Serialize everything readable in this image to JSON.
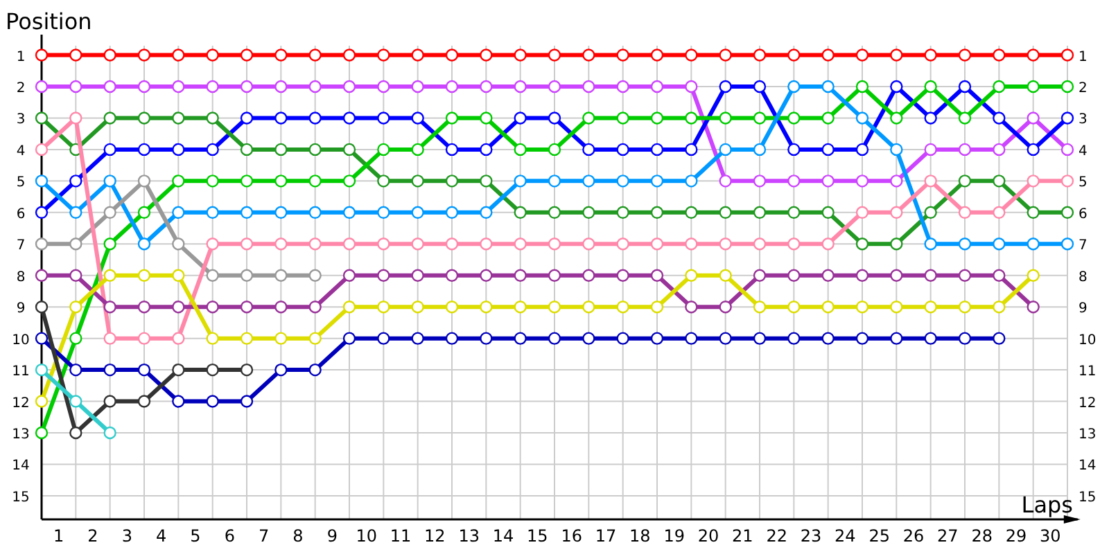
{
  "chart_data": {
    "type": "line",
    "xlabel": "Laps",
    "ylabel": "Position",
    "marker": "circle",
    "line_style": "solid",
    "grid": true,
    "x": [
      0,
      1,
      2,
      3,
      4,
      5,
      6,
      7,
      8,
      9,
      10,
      11,
      12,
      13,
      14,
      15,
      16,
      17,
      18,
      19,
      20,
      21,
      22,
      23,
      24,
      25,
      26,
      27,
      28,
      29,
      30
    ],
    "xlim": [
      0,
      30.3
    ],
    "xticks": [
      {
        "value": 0,
        "label": null
      },
      {
        "value": 1,
        "label": null
      },
      {
        "value": 2,
        "label": null
      },
      {
        "value": 3,
        "label": null
      },
      {
        "value": 4,
        "label": null
      },
      {
        "value": 5,
        "label": null
      },
      {
        "value": 6,
        "label": null
      },
      {
        "value": 7,
        "label": null
      },
      {
        "value": 8,
        "label": null
      },
      {
        "value": 9,
        "label": null
      },
      {
        "value": 10,
        "label": null
      },
      {
        "value": 11,
        "label": null
      },
      {
        "value": 12,
        "label": null
      },
      {
        "value": 13,
        "label": null
      },
      {
        "value": 14,
        "label": null
      },
      {
        "value": 15,
        "label": null
      },
      {
        "value": 16,
        "label": null
      },
      {
        "value": 17,
        "label": null
      },
      {
        "value": 18,
        "label": null
      },
      {
        "value": 19,
        "label": null
      },
      {
        "value": 20,
        "label": null
      },
      {
        "value": 21,
        "label": null
      },
      {
        "value": 22,
        "label": null
      },
      {
        "value": 23,
        "label": null
      },
      {
        "value": 24,
        "label": null
      },
      {
        "value": 25,
        "label": null
      },
      {
        "value": 26,
        "label": null
      },
      {
        "value": 27,
        "label": null
      },
      {
        "value": 28,
        "label": null
      },
      {
        "value": 29,
        "label": null
      },
      {
        "value": 30,
        "label": null
      },
      {
        "value": 0.5,
        "label": "1"
      },
      {
        "value": 1.5,
        "label": "2"
      },
      {
        "value": 2.5,
        "label": "3"
      },
      {
        "value": 3.5,
        "label": "4"
      },
      {
        "value": 4.5,
        "label": "5"
      },
      {
        "value": 5.5,
        "label": "6"
      },
      {
        "value": 6.5,
        "label": "7"
      },
      {
        "value": 7.5,
        "label": "8"
      },
      {
        "value": 8.5,
        "label": "9"
      },
      {
        "value": 9.5,
        "label": "10"
      },
      {
        "value": 10.5,
        "label": "11"
      },
      {
        "value": 11.5,
        "label": "12"
      },
      {
        "value": 12.5,
        "label": "13"
      },
      {
        "value": 13.5,
        "label": "14"
      },
      {
        "value": 14.5,
        "label": "15"
      },
      {
        "value": 15.5,
        "label": "16"
      },
      {
        "value": 16.5,
        "label": "17"
      },
      {
        "value": 17.5,
        "label": "18"
      },
      {
        "value": 18.5,
        "label": "19"
      },
      {
        "value": 19.5,
        "label": "20"
      },
      {
        "value": 20.5,
        "label": "21"
      },
      {
        "value": 21.5,
        "label": "22"
      },
      {
        "value": 22.5,
        "label": "23"
      },
      {
        "value": 23.5,
        "label": "24"
      },
      {
        "value": 24.5,
        "label": "25"
      },
      {
        "value": 25.5,
        "label": "26"
      },
      {
        "value": 26.5,
        "label": "27"
      },
      {
        "value": 27.5,
        "label": "28"
      },
      {
        "value": 28.5,
        "label": "29"
      },
      {
        "value": 29.5,
        "label": "30"
      }
    ],
    "ylim": [
      15.75,
      0.35
    ],
    "yticks": [
      1,
      2,
      3,
      4,
      5,
      6,
      7,
      8,
      9,
      10,
      11,
      12,
      13,
      14,
      15
    ],
    "y2lim": [
      15.75,
      0.35
    ],
    "y2ticks": [
      1,
      2,
      3,
      4,
      5,
      6,
      7,
      8,
      9,
      10,
      11,
      12,
      13,
      14,
      15
    ],
    "series": [
      {
        "color": "#ff0000",
        "values": [
          1,
          1,
          1,
          1,
          1,
          1,
          1,
          1,
          1,
          1,
          1,
          1,
          1,
          1,
          1,
          1,
          1,
          1,
          1,
          1,
          1,
          1,
          1,
          1,
          1,
          1,
          1,
          1,
          1,
          1,
          1
        ]
      },
      {
        "color": "#cc44ff",
        "values": [
          2,
          2,
          2,
          2,
          2,
          2,
          2,
          2,
          2,
          2,
          2,
          2,
          2,
          2,
          2,
          2,
          2,
          2,
          2,
          2,
          5,
          5,
          5,
          5,
          5,
          5,
          4,
          4,
          4,
          3,
          4
        ]
      },
      {
        "color": "#0000ff",
        "values": [
          6,
          5,
          4,
          4,
          4,
          4,
          3,
          3,
          3,
          3,
          3,
          3,
          4,
          4,
          3,
          3,
          4,
          4,
          4,
          4,
          2,
          2,
          4,
          4,
          4,
          2,
          3,
          2,
          3,
          4,
          3
        ]
      },
      {
        "color": "#229922",
        "values": [
          3,
          4,
          3,
          3,
          3,
          3,
          4,
          4,
          4,
          4,
          5,
          5,
          5,
          5,
          6,
          6,
          6,
          6,
          6,
          6,
          6,
          6,
          6,
          6,
          7,
          7,
          6,
          5,
          5,
          6,
          6
        ]
      },
      {
        "color": "#00cc00",
        "values": [
          13,
          10,
          7,
          6,
          5,
          5,
          5,
          5,
          5,
          5,
          4,
          4,
          3,
          3,
          4,
          4,
          3,
          3,
          3,
          3,
          3,
          3,
          3,
          3,
          2,
          3,
          2,
          3,
          2,
          2,
          2
        ]
      },
      {
        "color": "#0099ff",
        "values": [
          5,
          6,
          5,
          7,
          6,
          6,
          6,
          6,
          6,
          6,
          6,
          6,
          6,
          6,
          5,
          5,
          5,
          5,
          5,
          5,
          4,
          4,
          2,
          2,
          3,
          4,
          7,
          7,
          7,
          7,
          7
        ]
      },
      {
        "color": "#999999",
        "values": [
          7,
          7,
          6,
          5,
          7,
          8,
          8,
          8,
          8,
          null,
          null,
          null,
          null,
          null,
          null,
          null,
          null,
          null,
          null,
          null,
          null,
          null,
          null,
          null,
          null,
          null,
          null,
          null,
          null,
          null,
          null
        ]
      },
      {
        "color": "#ff88aa",
        "values": [
          4,
          3,
          10,
          10,
          10,
          7,
          7,
          7,
          7,
          7,
          7,
          7,
          7,
          7,
          7,
          7,
          7,
          7,
          7,
          7,
          7,
          7,
          7,
          7,
          6,
          6,
          5,
          6,
          6,
          5,
          5
        ]
      },
      {
        "color": "#993399",
        "values": [
          8,
          8,
          9,
          9,
          9,
          9,
          9,
          9,
          9,
          8,
          8,
          8,
          8,
          8,
          8,
          8,
          8,
          8,
          8,
          9,
          9,
          8,
          8,
          8,
          8,
          8,
          8,
          8,
          8,
          9,
          null
        ]
      },
      {
        "color": "#dddd00",
        "values": [
          12,
          9,
          8,
          8,
          8,
          10,
          10,
          10,
          10,
          9,
          9,
          9,
          9,
          9,
          9,
          9,
          9,
          9,
          9,
          8,
          8,
          9,
          9,
          9,
          9,
          9,
          9,
          9,
          9,
          8,
          null
        ]
      },
      {
        "color": "#0000bb",
        "values": [
          10,
          11,
          11,
          11,
          12,
          12,
          12,
          11,
          11,
          10,
          10,
          10,
          10,
          10,
          10,
          10,
          10,
          10,
          10,
          10,
          10,
          10,
          10,
          10,
          10,
          10,
          10,
          10,
          10,
          null,
          null
        ]
      },
      {
        "color": "#333333",
        "values": [
          9,
          13,
          12,
          12,
          11,
          11,
          11,
          null,
          null,
          null,
          null,
          null,
          null,
          null,
          null,
          null,
          null,
          null,
          null,
          null,
          null,
          null,
          null,
          null,
          null,
          null,
          null,
          null,
          null,
          null,
          null
        ]
      },
      {
        "color": "#33cccc",
        "values": [
          11,
          12,
          13,
          null,
          null,
          null,
          null,
          null,
          null,
          null,
          null,
          null,
          null,
          null,
          null,
          null,
          null,
          null,
          null,
          null,
          null,
          null,
          null,
          null,
          null,
          null,
          null,
          null,
          null,
          null,
          null
        ]
      }
    ]
  }
}
